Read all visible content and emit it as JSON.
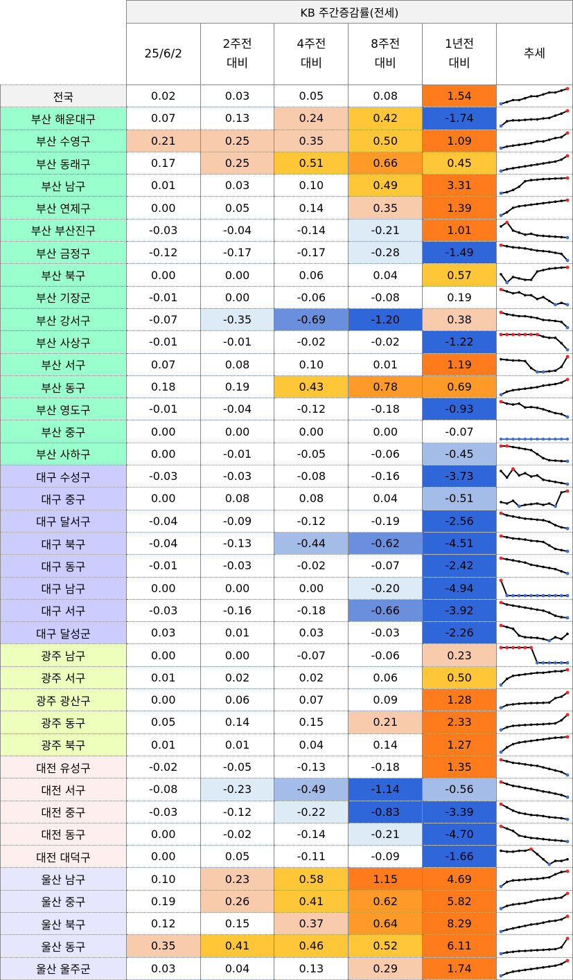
{
  "title": "KB 주간증감률(전세)",
  "columns": [
    {
      "line1": "25/6/2",
      "line2": ""
    },
    {
      "line1": "2주전",
      "line2": "대비"
    },
    {
      "line1": "4주전",
      "line2": "대비"
    },
    {
      "line1": "8주전",
      "line2": "대비"
    },
    {
      "line1": "1년전",
      "line2": "대비"
    },
    {
      "line1": "추세",
      "line2": ""
    }
  ],
  "colors": {
    "nationwide": "#ffffff",
    "busan": "#99ffcc",
    "daegu": "#ccccff",
    "gwangju": "#eeffbb",
    "daejeon": "#ffeeee",
    "ulsan": "#e6e6ff",
    "scale": {
      "o4": "#ff7b1c",
      "o3": "#ff9a28",
      "o2": "#ffc638",
      "o1": "#f8cbad",
      "n": "#ffffff",
      "b1": "#ddebf7",
      "b2": "#a3bde8",
      "b3": "#6a8fdc",
      "b4": "#2f66d9"
    },
    "spark_line": "#000000",
    "spark_max": "#ff2020",
    "spark_min": "#3b6fe0"
  },
  "rows": [
    {
      "name": "전국",
      "group": "nationwide",
      "values": [
        "0.02",
        "0.03",
        "0.05",
        "0.08",
        "1.54"
      ],
      "shades": [
        "n",
        "n",
        "n",
        "n",
        "o4"
      ],
      "trend": [
        0.01,
        0.015,
        0.02,
        0.02,
        0.025,
        0.03,
        0.03,
        0.035,
        0.04,
        0.04,
        0.045,
        0.05
      ]
    },
    {
      "name": "부산 해운대구",
      "group": "busan",
      "values": [
        "0.07",
        "0.13",
        "0.24",
        "0.42",
        "-1.74"
      ],
      "shades": [
        "n",
        "n",
        "o1",
        "o2",
        "b4"
      ],
      "trend": [
        0.0,
        0.05,
        0.06,
        0.06,
        0.065,
        0.07,
        0.07,
        0.08,
        0.085,
        0.11,
        0.13,
        0.16
      ]
    },
    {
      "name": "부산 수영구",
      "group": "busan",
      "values": [
        "0.21",
        "0.25",
        "0.35",
        "0.50",
        "1.09"
      ],
      "shades": [
        "o1",
        "o1",
        "o1",
        "o2",
        "o4"
      ],
      "trend": [
        0.02,
        0.03,
        0.035,
        0.04,
        0.045,
        0.05,
        0.06,
        0.06,
        0.07,
        0.08,
        0.085,
        0.11
      ]
    },
    {
      "name": "부산 동래구",
      "group": "busan",
      "values": [
        "0.17",
        "0.25",
        "0.51",
        "0.66",
        "0.45"
      ],
      "shades": [
        "n",
        "o1",
        "o2",
        "o3",
        "o2"
      ],
      "trend": [
        0.01,
        0.02,
        0.025,
        0.03,
        0.035,
        0.04,
        0.045,
        0.05,
        0.055,
        0.06,
        0.07,
        0.09
      ]
    },
    {
      "name": "부산 남구",
      "group": "busan",
      "values": [
        "0.01",
        "0.03",
        "0.10",
        "0.49",
        "3.31"
      ],
      "shades": [
        "n",
        "n",
        "n",
        "o2",
        "o4"
      ],
      "trend": [
        0.0,
        0.01,
        0.03,
        0.06,
        0.11,
        0.12,
        0.125,
        0.13,
        0.132,
        0.135,
        0.137,
        0.14
      ]
    },
    {
      "name": "부산 연제구",
      "group": "busan",
      "values": [
        "0.00",
        "0.05",
        "0.14",
        "0.35",
        "1.39"
      ],
      "shades": [
        "n",
        "n",
        "n",
        "o1",
        "o4"
      ],
      "trend": [
        0.0,
        0.02,
        0.05,
        0.06,
        0.065,
        0.07,
        0.075,
        0.08,
        0.085,
        0.09,
        0.095,
        0.1
      ]
    },
    {
      "name": "부산 부산진구",
      "group": "busan",
      "values": [
        "-0.03",
        "-0.04",
        "-0.14",
        "-0.21",
        "1.01"
      ],
      "shades": [
        "n",
        "n",
        "n",
        "b1",
        "o4"
      ],
      "trend": [
        0.1,
        0.11,
        0.09,
        0.085,
        0.08,
        0.082,
        0.078,
        0.077,
        0.076,
        0.075,
        0.074,
        0.073
      ]
    },
    {
      "name": "부산 금정구",
      "group": "busan",
      "values": [
        "-0.12",
        "-0.17",
        "-0.17",
        "-0.28",
        "-1.49"
      ],
      "shades": [
        "n",
        "n",
        "n",
        "b1",
        "b4"
      ],
      "trend": [
        0.1,
        0.095,
        0.09,
        0.088,
        0.085,
        0.08,
        0.075,
        0.073,
        0.07,
        0.065,
        0.06,
        0.03
      ]
    },
    {
      "name": "부산 북구",
      "group": "busan",
      "values": [
        "0.00",
        "0.00",
        "0.06",
        "0.04",
        "0.57"
      ],
      "shades": [
        "n",
        "n",
        "n",
        "n",
        "o2"
      ],
      "trend": [
        0.06,
        0.03,
        0.05,
        0.045,
        0.04,
        0.04,
        0.07,
        0.075,
        0.08,
        0.082,
        0.084,
        0.085
      ]
    },
    {
      "name": "부산 기장군",
      "group": "busan",
      "values": [
        "-0.01",
        "0.00",
        "-0.06",
        "-0.08",
        "0.19"
      ],
      "shades": [
        "n",
        "n",
        "n",
        "n",
        "n"
      ],
      "trend": [
        0.1,
        0.09,
        0.08,
        0.085,
        0.07,
        0.07,
        0.05,
        0.06,
        0.04,
        0.02,
        0.03,
        0.02
      ]
    },
    {
      "name": "부산 강서구",
      "group": "busan",
      "values": [
        "-0.07",
        "-0.35",
        "-0.69",
        "-1.20",
        "0.38"
      ],
      "shades": [
        "n",
        "b1",
        "b3",
        "b4",
        "o1"
      ],
      "trend": [
        0.1,
        0.09,
        0.085,
        0.08,
        0.08,
        0.075,
        0.07,
        0.06,
        0.058,
        0.055,
        0.05,
        0.02
      ]
    },
    {
      "name": "부산 사상구",
      "group": "busan",
      "values": [
        "-0.01",
        "-0.01",
        "-0.02",
        "-0.02",
        "-1.22"
      ],
      "shades": [
        "n",
        "n",
        "n",
        "n",
        "b4"
      ],
      "trend": [
        0.1,
        0.1,
        0.1,
        0.1,
        0.1,
        0.1,
        0.1,
        0.09,
        0.085,
        0.085,
        0.06,
        0.03
      ]
    },
    {
      "name": "부산 서구",
      "group": "busan",
      "values": [
        "0.07",
        "0.08",
        "0.10",
        "0.01",
        "1.19"
      ],
      "shades": [
        "n",
        "n",
        "n",
        "n",
        "o4"
      ],
      "trend": [
        0.1,
        0.095,
        0.09,
        0.09,
        0.085,
        0.03,
        0.0,
        0.0,
        0.005,
        0.01,
        0.04,
        0.12
      ]
    },
    {
      "name": "부산 동구",
      "group": "busan",
      "values": [
        "0.18",
        "0.19",
        "0.43",
        "0.78",
        "0.69"
      ],
      "shades": [
        "n",
        "n",
        "o2",
        "o3",
        "o3"
      ],
      "trend": [
        0.0,
        0.02,
        0.03,
        0.035,
        0.04,
        0.045,
        0.05,
        0.06,
        0.065,
        0.07,
        0.08,
        0.1
      ]
    },
    {
      "name": "부산 영도구",
      "group": "busan",
      "values": [
        "-0.01",
        "-0.04",
        "-0.12",
        "-0.18",
        "-0.93"
      ],
      "shades": [
        "n",
        "n",
        "n",
        "n",
        "b4"
      ],
      "trend": [
        0.1,
        0.09,
        0.085,
        0.09,
        0.07,
        0.072,
        0.068,
        0.06,
        0.05,
        0.04,
        0.035,
        0.02
      ]
    },
    {
      "name": "부산 중구",
      "group": "busan",
      "values": [
        "0.00",
        "0.00",
        "0.00",
        "0.00",
        "-0.07"
      ],
      "shades": [
        "n",
        "n",
        "n",
        "n",
        "n"
      ],
      "trend": [
        0.0,
        0.0,
        0.0,
        0.0,
        0.0,
        0.0,
        0.0,
        0.0,
        0.0,
        0.0,
        0.0,
        0.0
      ]
    },
    {
      "name": "부산 사하구",
      "group": "busan",
      "values": [
        "0.00",
        "-0.01",
        "-0.05",
        "-0.06",
        "-0.45"
      ],
      "shades": [
        "n",
        "n",
        "n",
        "n",
        "b2"
      ],
      "trend": [
        0.1,
        0.1,
        0.095,
        0.09,
        0.085,
        0.08,
        0.06,
        0.04,
        0.03,
        0.028,
        0.026,
        0.025
      ]
    },
    {
      "name": "대구 수성구",
      "group": "daegu",
      "values": [
        "-0.03",
        "-0.03",
        "-0.08",
        "-0.16",
        "-3.73"
      ],
      "shades": [
        "n",
        "n",
        "n",
        "n",
        "b4"
      ],
      "trend": [
        0.08,
        0.05,
        0.09,
        0.06,
        0.07,
        0.055,
        0.06,
        0.04,
        0.035,
        0.03,
        0.025,
        0.02
      ]
    },
    {
      "name": "대구 중구",
      "group": "daegu",
      "values": [
        "0.00",
        "0.08",
        "0.08",
        "0.04",
        "-0.51"
      ],
      "shades": [
        "n",
        "n",
        "n",
        "n",
        "b2"
      ],
      "trend": [
        0.05,
        0.04,
        0.06,
        0.02,
        0.03,
        0.035,
        0.04,
        0.03,
        0.04,
        0.02,
        0.12,
        0.13
      ]
    },
    {
      "name": "대구 달서구",
      "group": "daegu",
      "values": [
        "-0.04",
        "-0.09",
        "-0.12",
        "-0.19",
        "-2.56"
      ],
      "shades": [
        "n",
        "n",
        "n",
        "n",
        "b4"
      ],
      "trend": [
        0.1,
        0.09,
        0.085,
        0.08,
        0.075,
        0.073,
        0.07,
        0.068,
        0.06,
        0.045,
        0.035,
        0.03
      ]
    },
    {
      "name": "대구 북구",
      "group": "daegu",
      "values": [
        "-0.04",
        "-0.13",
        "-0.44",
        "-0.62",
        "-4.51"
      ],
      "shades": [
        "n",
        "n",
        "b2",
        "b3",
        "b4"
      ],
      "trend": [
        0.1,
        0.095,
        0.09,
        0.088,
        0.085,
        0.08,
        0.078,
        0.075,
        0.06,
        0.045,
        0.04,
        0.035
      ]
    },
    {
      "name": "대구 동구",
      "group": "daegu",
      "values": [
        "-0.01",
        "-0.03",
        "-0.02",
        "-0.07",
        "-2.42"
      ],
      "shades": [
        "n",
        "n",
        "n",
        "n",
        "b4"
      ],
      "trend": [
        0.1,
        0.095,
        0.09,
        0.085,
        0.08,
        0.07,
        0.065,
        0.06,
        0.055,
        0.05,
        0.04,
        0.03
      ]
    },
    {
      "name": "대구 남구",
      "group": "daegu",
      "values": [
        "0.00",
        "0.00",
        "0.00",
        "-0.20",
        "-4.94"
      ],
      "shades": [
        "n",
        "n",
        "n",
        "b1",
        "b4"
      ],
      "trend": [
        0.12,
        0.0,
        0.0,
        0.0,
        0.0,
        0.0,
        0.0,
        0.0,
        0.0,
        0.0,
        0.0,
        0.0
      ]
    },
    {
      "name": "대구 서구",
      "group": "daegu",
      "values": [
        "-0.03",
        "-0.16",
        "-0.18",
        "-0.66",
        "-3.92"
      ],
      "shades": [
        "n",
        "n",
        "n",
        "b3",
        "b4"
      ],
      "trend": [
        0.1,
        0.09,
        0.085,
        0.08,
        0.075,
        0.07,
        0.065,
        0.06,
        0.05,
        0.035,
        0.028,
        0.025
      ]
    },
    {
      "name": "대구 달성군",
      "group": "daegu",
      "values": [
        "0.03",
        "0.01",
        "0.03",
        "-0.03",
        "-2.26"
      ],
      "shades": [
        "n",
        "n",
        "n",
        "n",
        "b4"
      ],
      "trend": [
        0.1,
        0.09,
        0.08,
        0.04,
        0.03,
        0.028,
        0.026,
        0.02,
        0.01,
        0.03,
        0.02,
        0.05
      ]
    },
    {
      "name": "광주 남구",
      "group": "gwangju",
      "values": [
        "0.00",
        "0.00",
        "-0.07",
        "-0.06",
        "0.23"
      ],
      "shades": [
        "n",
        "n",
        "n",
        "n",
        "o1"
      ],
      "trend": [
        0.1,
        0.1,
        0.1,
        0.1,
        0.1,
        0.1,
        0.0,
        0.0,
        0.0,
        0.0,
        0.0,
        0.0
      ]
    },
    {
      "name": "광주 서구",
      "group": "gwangju",
      "values": [
        "0.01",
        "0.02",
        "0.02",
        "0.06",
        "0.50"
      ],
      "shades": [
        "n",
        "n",
        "n",
        "n",
        "o2"
      ],
      "trend": [
        0.0,
        0.04,
        0.06,
        0.065,
        0.07,
        0.075,
        0.08,
        0.08,
        0.085,
        0.09,
        0.09,
        0.1
      ]
    },
    {
      "name": "광주 광산구",
      "group": "gwangju",
      "values": [
        "0.00",
        "0.06",
        "0.07",
        "0.09",
        "1.28"
      ],
      "shades": [
        "n",
        "n",
        "n",
        "n",
        "o4"
      ],
      "trend": [
        0.0,
        0.02,
        0.025,
        0.03,
        0.032,
        0.034,
        0.035,
        0.036,
        0.038,
        0.07,
        0.08,
        0.11
      ]
    },
    {
      "name": "광주 동구",
      "group": "gwangju",
      "values": [
        "0.05",
        "0.14",
        "0.15",
        "0.21",
        "2.33"
      ],
      "shades": [
        "n",
        "n",
        "n",
        "o1",
        "o4"
      ],
      "trend": [
        0.0,
        0.02,
        0.03,
        0.033,
        0.036,
        0.038,
        0.04,
        0.042,
        0.045,
        0.048,
        0.07,
        0.11
      ]
    },
    {
      "name": "광주 북구",
      "group": "gwangju",
      "values": [
        "0.01",
        "0.01",
        "0.04",
        "0.14",
        "1.27"
      ],
      "shades": [
        "n",
        "n",
        "n",
        "n",
        "o4"
      ],
      "trend": [
        0.0,
        0.03,
        0.05,
        0.06,
        0.065,
        0.07,
        0.075,
        0.08,
        0.085,
        0.09,
        0.092,
        0.095
      ]
    },
    {
      "name": "대전 유성구",
      "group": "daejeon",
      "values": [
        "-0.02",
        "-0.05",
        "-0.13",
        "-0.18",
        "1.35"
      ],
      "shades": [
        "n",
        "n",
        "n",
        "n",
        "o4"
      ],
      "trend": [
        0.1,
        0.095,
        0.09,
        0.088,
        0.085,
        0.082,
        0.08,
        0.075,
        0.07,
        0.065,
        0.06,
        0.05
      ]
    },
    {
      "name": "대전 서구",
      "group": "daejeon",
      "values": [
        "-0.08",
        "-0.23",
        "-0.49",
        "-1.14",
        "-0.56"
      ],
      "shades": [
        "n",
        "b1",
        "b2",
        "b4",
        "b2"
      ],
      "trend": [
        0.1,
        0.09,
        0.082,
        0.078,
        0.072,
        0.068,
        0.062,
        0.056,
        0.052,
        0.046,
        0.04,
        0.03
      ]
    },
    {
      "name": "대전 중구",
      "group": "daejeon",
      "values": [
        "-0.03",
        "-0.12",
        "-0.22",
        "-0.83",
        "-3.39"
      ],
      "shades": [
        "n",
        "n",
        "b1",
        "b4",
        "b4"
      ],
      "trend": [
        0.1,
        0.085,
        0.07,
        0.06,
        0.055,
        0.05,
        0.048,
        0.045,
        0.04,
        0.038,
        0.035,
        0.03
      ]
    },
    {
      "name": "대전 동구",
      "group": "daejeon",
      "values": [
        "0.00",
        "-0.02",
        "-0.14",
        "-0.21",
        "-4.70"
      ],
      "shades": [
        "n",
        "n",
        "n",
        "b1",
        "b4"
      ],
      "trend": [
        0.1,
        0.09,
        0.08,
        0.06,
        0.055,
        0.05,
        0.048,
        0.045,
        0.042,
        0.04,
        0.038,
        0.035
      ]
    },
    {
      "name": "대전 대덕구",
      "group": "daejeon",
      "values": [
        "0.00",
        "0.05",
        "-0.11",
        "-0.09",
        "-1.66"
      ],
      "shades": [
        "n",
        "n",
        "n",
        "n",
        "b4"
      ],
      "trend": [
        0.08,
        0.075,
        0.075,
        0.08,
        0.08,
        0.09,
        0.06,
        0.03,
        0.0,
        0.02,
        0.02,
        0.03
      ]
    },
    {
      "name": "울산 남구",
      "group": "ulsan",
      "values": [
        "0.10",
        "0.23",
        "0.58",
        "1.15",
        "4.69"
      ],
      "shades": [
        "n",
        "o1",
        "o2",
        "o4",
        "o4"
      ],
      "trend": [
        0.0,
        0.03,
        0.04,
        0.042,
        0.045,
        0.048,
        0.05,
        0.055,
        0.06,
        0.08,
        0.095,
        0.1
      ]
    },
    {
      "name": "울산 중구",
      "group": "ulsan",
      "values": [
        "0.19",
        "0.26",
        "0.41",
        "0.62",
        "5.82"
      ],
      "shades": [
        "n",
        "o1",
        "o2",
        "o3",
        "o4"
      ],
      "trend": [
        0.0,
        0.02,
        0.03,
        0.035,
        0.04,
        0.05,
        0.06,
        0.065,
        0.07,
        0.075,
        0.08,
        0.11
      ]
    },
    {
      "name": "울산 북구",
      "group": "ulsan",
      "values": [
        "0.12",
        "0.15",
        "0.37",
        "0.64",
        "8.29"
      ],
      "shades": [
        "n",
        "n",
        "o1",
        "o3",
        "o4"
      ],
      "trend": [
        0.0,
        0.015,
        0.025,
        0.035,
        0.045,
        0.055,
        0.06,
        0.07,
        0.08,
        0.085,
        0.095,
        0.12
      ]
    },
    {
      "name": "울산 동구",
      "group": "ulsan",
      "values": [
        "0.35",
        "0.41",
        "0.46",
        "0.52",
        "6.11"
      ],
      "shades": [
        "o1",
        "o2",
        "o2",
        "o2",
        "o4"
      ],
      "trend": [
        0.0,
        0.01,
        0.015,
        0.02,
        0.022,
        0.025,
        0.028,
        0.03,
        0.033,
        0.036,
        0.05,
        0.12
      ]
    },
    {
      "name": "울산 울주군",
      "group": "ulsan",
      "values": [
        "0.03",
        "0.04",
        "0.13",
        "0.29",
        "1.74"
      ],
      "shades": [
        "n",
        "n",
        "n",
        "o1",
        "o4"
      ],
      "trend": [
        0.0,
        0.015,
        0.025,
        0.03,
        0.035,
        0.04,
        0.045,
        0.05,
        0.055,
        0.06,
        0.07,
        0.09
      ]
    }
  ]
}
